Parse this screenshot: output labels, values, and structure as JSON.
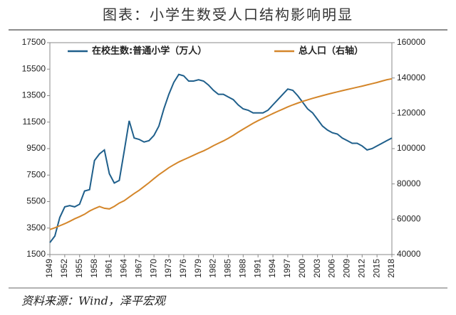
{
  "chart_data": {
    "type": "line",
    "title": "图表：小学生数受人口结构影响明显",
    "source": "资料来源：Wind，泽平宏观",
    "x": [
      1949,
      1950,
      1951,
      1952,
      1953,
      1954,
      1955,
      1956,
      1957,
      1958,
      1959,
      1960,
      1961,
      1962,
      1963,
      1964,
      1965,
      1966,
      1967,
      1968,
      1969,
      1970,
      1971,
      1972,
      1973,
      1974,
      1975,
      1976,
      1977,
      1978,
      1979,
      1980,
      1981,
      1982,
      1983,
      1984,
      1985,
      1986,
      1987,
      1988,
      1989,
      1990,
      1991,
      1992,
      1993,
      1994,
      1995,
      1996,
      1997,
      1998,
      1999,
      2000,
      2001,
      2002,
      2003,
      2004,
      2005,
      2006,
      2007,
      2008,
      2009,
      2010,
      2011,
      2012,
      2013,
      2014,
      2015,
      2016,
      2017,
      2018
    ],
    "xlim": [
      1949,
      2018
    ],
    "xticks": [
      1949,
      1952,
      1955,
      1958,
      1961,
      1964,
      1967,
      1970,
      1973,
      1976,
      1979,
      1982,
      1985,
      1988,
      1991,
      1994,
      1997,
      2000,
      2003,
      2006,
      2009,
      2012,
      2015,
      2018
    ],
    "ylim": [
      1500,
      17500
    ],
    "yticks": [
      1500,
      3500,
      5500,
      7500,
      9500,
      11500,
      13500,
      15500,
      17500
    ],
    "y2lim": [
      40000,
      160000
    ],
    "y2ticks": [
      40000,
      60000,
      80000,
      100000,
      120000,
      140000,
      160000
    ],
    "series": [
      {
        "name": "在校生数:普通小学（万人）",
        "color": "#1f5f8b",
        "values": [
          2400,
          2900,
          4300,
          5100,
          5200,
          5100,
          5300,
          6300,
          6400,
          8600,
          9100,
          9400,
          7600,
          6900,
          7100,
          9300,
          11600,
          10300,
          10200,
          10000,
          10100,
          10500,
          11200,
          12500,
          13600,
          14500,
          15100,
          15000,
          14600,
          14600,
          14700,
          14600,
          14300,
          13900,
          13600,
          13600,
          13400,
          13200,
          12800,
          12500,
          12400,
          12200,
          12200,
          12200,
          12400,
          12800,
          13200,
          13600,
          14000,
          13900,
          13500,
          13000,
          12500,
          12200,
          11700,
          11200,
          10900,
          10700,
          10600,
          10300,
          10100,
          9900,
          9900,
          9700,
          9400,
          9500,
          9700,
          9900,
          10100,
          10300
        ]
      },
      {
        "name": "总人口（右轴）",
        "color": "#d4862a",
        "axis": "y2",
        "values": [
          54167,
          55196,
          56300,
          57482,
          58796,
          60266,
          61465,
          62828,
          64653,
          65994,
          67207,
          66207,
          65859,
          67295,
          69172,
          70499,
          72538,
          74542,
          76368,
          78534,
          80671,
          82992,
          85229,
          87177,
          89211,
          90859,
          92420,
          93717,
          94974,
          96259,
          97542,
          98705,
          100072,
          101654,
          103008,
          104357,
          105851,
          107507,
          109300,
          111026,
          112704,
          114333,
          115823,
          117171,
          118517,
          119850,
          121121,
          122389,
          123626,
          124761,
          125786,
          126743,
          127627,
          128453,
          129227,
          129988,
          130756,
          131448,
          132129,
          132802,
          133450,
          134091,
          134735,
          135404,
          136072,
          136782,
          137462,
          138271,
          139008,
          139538
        ]
      }
    ]
  }
}
